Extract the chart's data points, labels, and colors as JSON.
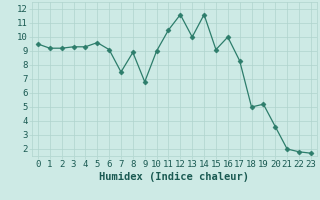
{
  "x": [
    0,
    1,
    2,
    3,
    4,
    5,
    6,
    7,
    8,
    9,
    10,
    11,
    12,
    13,
    14,
    15,
    16,
    17,
    18,
    19,
    20,
    21,
    22,
    23
  ],
  "y": [
    9.5,
    9.2,
    9.2,
    9.3,
    9.3,
    9.6,
    9.1,
    7.5,
    8.9,
    6.8,
    9.0,
    10.5,
    11.6,
    10.0,
    11.6,
    9.1,
    10.0,
    8.3,
    5.0,
    5.2,
    3.6,
    2.0,
    1.8,
    1.7
  ],
  "line_color": "#2d7d6b",
  "marker": "D",
  "marker_size": 2.5,
  "bg_color": "#cdeae5",
  "grid_color": "#b0d4ce",
  "xlabel": "Humidex (Indice chaleur)",
  "ylim_min": 1.5,
  "ylim_max": 12.5,
  "xlim_min": -0.5,
  "xlim_max": 23.5,
  "yticks": [
    2,
    3,
    4,
    5,
    6,
    7,
    8,
    9,
    10,
    11,
    12
  ],
  "xticks": [
    0,
    1,
    2,
    3,
    4,
    5,
    6,
    7,
    8,
    9,
    10,
    11,
    12,
    13,
    14,
    15,
    16,
    17,
    18,
    19,
    20,
    21,
    22,
    23
  ],
  "tick_fontsize": 6.5,
  "xlabel_fontsize": 7.5
}
